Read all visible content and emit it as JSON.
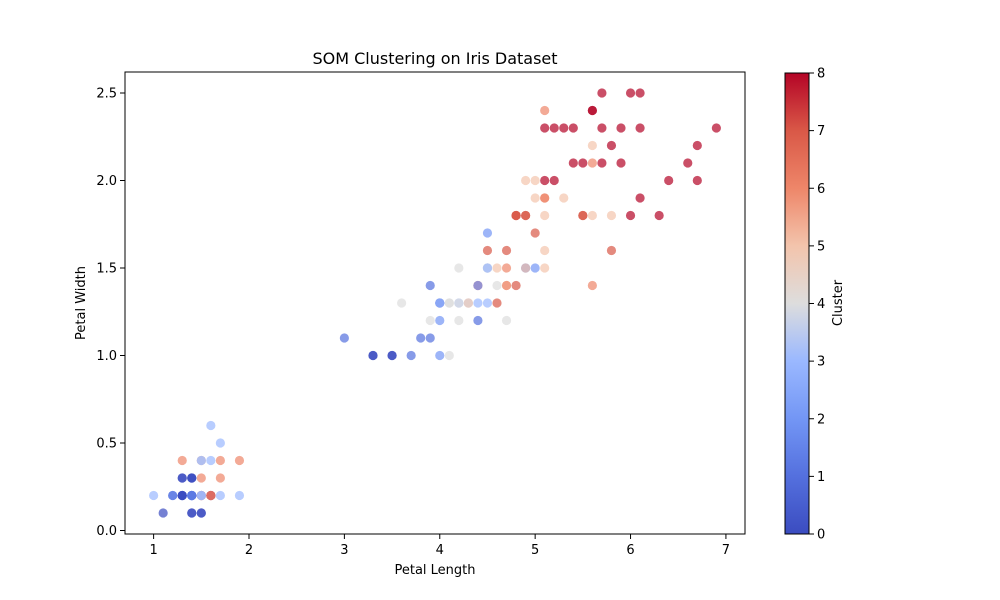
{
  "chart_data": {
    "type": "scatter",
    "title": "SOM Clustering on Iris Dataset",
    "xlabel": "Petal Length",
    "ylabel": "Petal Width",
    "xlim": [
      0.7,
      7.2
    ],
    "ylim": [
      -0.02,
      2.62
    ],
    "xticks": [
      "1",
      "2",
      "3",
      "4",
      "5",
      "6",
      "7"
    ],
    "yticks": [
      "0.0",
      "0.5",
      "1.0",
      "1.5",
      "2.0",
      "2.5"
    ],
    "colorbar": {
      "label": "Cluster",
      "range": [
        0,
        8
      ],
      "ticks": [
        "0",
        "1",
        "2",
        "3",
        "4",
        "5",
        "6",
        "7",
        "8"
      ],
      "colormap": "coolwarm"
    },
    "grid": false,
    "points": [
      [
        1.4,
        0.2,
        1
      ],
      [
        1.4,
        0.2,
        2
      ],
      [
        1.3,
        0.2,
        0
      ],
      [
        1.5,
        0.2,
        7
      ],
      [
        1.4,
        0.2,
        3
      ],
      [
        1.7,
        0.4,
        6
      ],
      [
        1.4,
        0.3,
        0
      ],
      [
        1.5,
        0.2,
        6
      ],
      [
        1.4,
        0.2,
        0
      ],
      [
        1.5,
        0.1,
        0
      ],
      [
        1.5,
        0.2,
        5
      ],
      [
        1.6,
        0.2,
        6
      ],
      [
        1.4,
        0.1,
        0
      ],
      [
        1.1,
        0.1,
        0
      ],
      [
        1.2,
        0.2,
        2
      ],
      [
        1.5,
        0.4,
        6
      ],
      [
        1.3,
        0.4,
        6
      ],
      [
        1.4,
        0.3,
        0
      ],
      [
        1.7,
        0.3,
        6
      ],
      [
        1.5,
        0.3,
        6
      ],
      [
        1.7,
        0.2,
        3
      ],
      [
        1.5,
        0.4,
        4
      ],
      [
        1.0,
        0.2,
        3
      ],
      [
        1.7,
        0.5,
        3
      ],
      [
        1.9,
        0.2,
        3
      ],
      [
        1.6,
        0.2,
        7
      ],
      [
        1.6,
        0.4,
        3
      ],
      [
        1.5,
        0.2,
        3
      ],
      [
        1.4,
        0.2,
        2
      ],
      [
        1.6,
        0.2,
        3
      ],
      [
        1.6,
        0.2,
        8
      ],
      [
        1.5,
        0.4,
        3
      ],
      [
        1.5,
        0.1,
        0
      ],
      [
        1.4,
        0.2,
        1
      ],
      [
        1.5,
        0.2,
        6
      ],
      [
        1.2,
        0.2,
        1
      ],
      [
        1.3,
        0.2,
        0
      ],
      [
        1.4,
        0.1,
        0
      ],
      [
        1.3,
        0.2,
        0
      ],
      [
        1.5,
        0.2,
        3
      ],
      [
        1.3,
        0.3,
        0
      ],
      [
        1.3,
        0.3,
        0
      ],
      [
        1.3,
        0.2,
        0
      ],
      [
        1.6,
        0.6,
        3
      ],
      [
        1.9,
        0.4,
        6
      ],
      [
        1.4,
        0.3,
        0
      ],
      [
        1.6,
        0.2,
        6
      ],
      [
        1.4,
        0.2,
        2
      ],
      [
        1.5,
        0.2,
        3
      ],
      [
        1.4,
        0.2,
        1
      ],
      [
        4.7,
        1.4,
        5
      ],
      [
        4.5,
        1.5,
        3
      ],
      [
        4.9,
        1.5,
        1
      ],
      [
        4.0,
        1.3,
        1
      ],
      [
        4.6,
        1.5,
        5
      ],
      [
        4.5,
        1.3,
        3
      ],
      [
        4.7,
        1.6,
        7
      ],
      [
        3.3,
        1.0,
        0
      ],
      [
        4.6,
        1.3,
        7
      ],
      [
        3.9,
        1.4,
        1
      ],
      [
        3.5,
        1.0,
        0
      ],
      [
        4.2,
        1.5,
        4
      ],
      [
        4.0,
        1.0,
        2
      ],
      [
        4.7,
        1.4,
        6
      ],
      [
        3.6,
        1.3,
        4
      ],
      [
        4.4,
        1.4,
        7
      ],
      [
        4.5,
        1.5,
        4
      ],
      [
        4.1,
        1.0,
        4
      ],
      [
        4.5,
        1.5,
        4
      ],
      [
        3.9,
        1.1,
        1
      ],
      [
        4.8,
        1.8,
        7
      ],
      [
        4.0,
        1.3,
        1
      ],
      [
        4.9,
        1.5,
        5
      ],
      [
        4.7,
        1.2,
        4
      ],
      [
        4.3,
        1.3,
        6
      ],
      [
        4.4,
        1.4,
        2
      ],
      [
        4.8,
        1.4,
        7
      ],
      [
        5.0,
        1.7,
        7
      ],
      [
        4.5,
        1.5,
        4
      ],
      [
        3.5,
        1.0,
        0
      ],
      [
        3.8,
        1.1,
        1
      ],
      [
        3.7,
        1.0,
        1
      ],
      [
        3.9,
        1.2,
        4
      ],
      [
        5.1,
        1.6,
        5
      ],
      [
        4.5,
        1.5,
        3
      ],
      [
        4.5,
        1.6,
        7
      ],
      [
        4.7,
        1.5,
        6
      ],
      [
        4.4,
        1.3,
        3
      ],
      [
        4.1,
        1.3,
        4
      ],
      [
        4.0,
        1.3,
        3
      ],
      [
        4.4,
        1.2,
        1
      ],
      [
        4.6,
        1.4,
        4
      ],
      [
        4.0,
        1.2,
        2
      ],
      [
        3.3,
        1.0,
        0
      ],
      [
        4.2,
        1.3,
        3
      ],
      [
        4.2,
        1.2,
        4
      ],
      [
        4.2,
        1.3,
        4
      ],
      [
        4.3,
        1.3,
        4
      ],
      [
        3.0,
        1.1,
        1
      ],
      [
        4.1,
        1.3,
        4
      ],
      [
        6.0,
        2.5,
        8
      ],
      [
        5.1,
        1.9,
        6
      ],
      [
        5.9,
        2.1,
        8
      ],
      [
        5.6,
        1.8,
        5
      ],
      [
        5.8,
        2.2,
        8
      ],
      [
        6.6,
        2.1,
        8
      ],
      [
        4.5,
        1.7,
        2
      ],
      [
        6.3,
        1.8,
        8
      ],
      [
        5.8,
        1.8,
        5
      ],
      [
        6.1,
        2.5,
        8
      ],
      [
        5.1,
        2.0,
        8
      ],
      [
        5.3,
        1.9,
        5
      ],
      [
        5.5,
        2.1,
        8
      ],
      [
        5.0,
        2.0,
        5
      ],
      [
        5.1,
        2.4,
        6
      ],
      [
        5.3,
        2.3,
        8
      ],
      [
        5.5,
        1.8,
        7
      ],
      [
        6.7,
        2.2,
        8
      ],
      [
        6.9,
        2.3,
        8
      ],
      [
        5.0,
        1.5,
        2
      ],
      [
        5.7,
        2.3,
        8
      ],
      [
        4.9,
        2.0,
        5
      ],
      [
        6.7,
        2.0,
        8
      ],
      [
        4.9,
        1.8,
        7
      ],
      [
        5.7,
        2.1,
        8
      ],
      [
        6.0,
        1.8,
        8
      ],
      [
        4.8,
        1.8,
        7
      ],
      [
        4.9,
        1.8,
        7
      ],
      [
        5.6,
        2.1,
        6
      ],
      [
        5.8,
        1.6,
        7
      ],
      [
        6.1,
        1.9,
        8
      ],
      [
        6.4,
        2.0,
        8
      ],
      [
        5.6,
        2.2,
        5
      ],
      [
        5.1,
        1.5,
        5
      ],
      [
        5.6,
        1.4,
        6
      ],
      [
        6.1,
        2.3,
        8
      ],
      [
        5.6,
        2.4,
        8
      ],
      [
        5.5,
        1.8,
        7
      ],
      [
        4.8,
        1.8,
        7
      ],
      [
        5.4,
        2.1,
        8
      ],
      [
        5.6,
        2.4,
        8
      ],
      [
        5.1,
        2.3,
        8
      ],
      [
        5.1,
        1.9,
        6
      ],
      [
        5.9,
        2.3,
        8
      ],
      [
        5.7,
        2.5,
        8
      ],
      [
        5.2,
        2.3,
        8
      ],
      [
        5.0,
        1.9,
        5
      ],
      [
        5.2,
        2.0,
        8
      ],
      [
        5.4,
        2.3,
        8
      ],
      [
        5.1,
        1.8,
        5
      ]
    ]
  }
}
